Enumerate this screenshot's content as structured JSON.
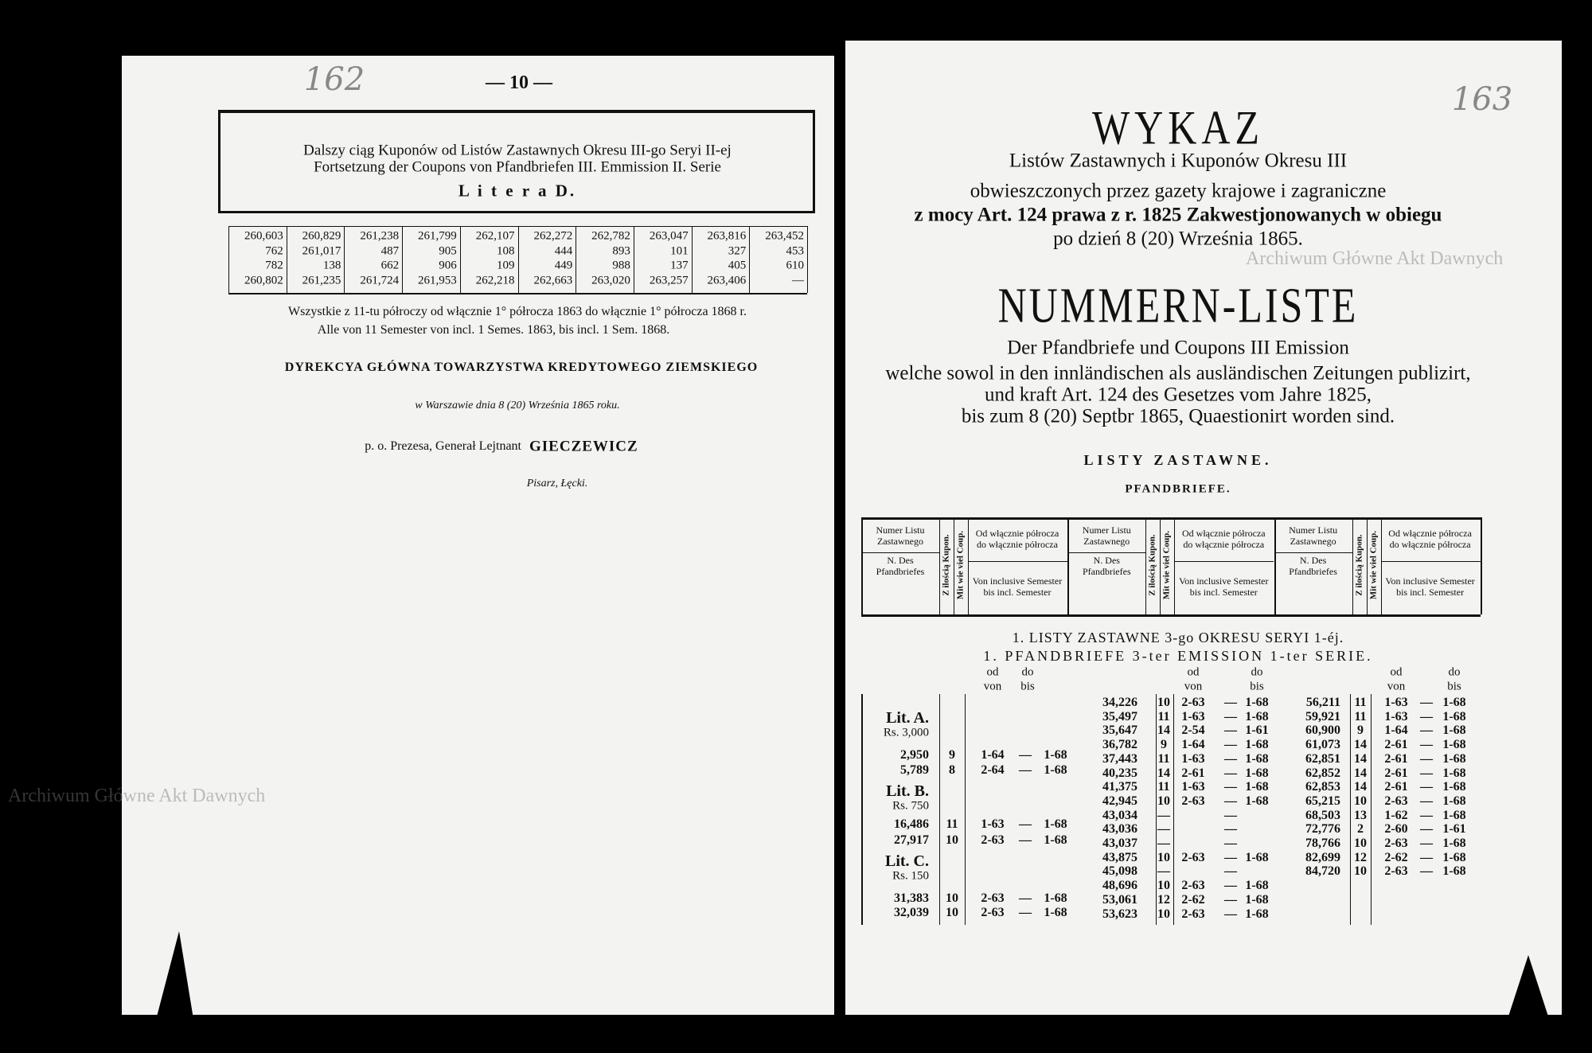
{
  "watermark": [
    "Archiwum Główne Akt Dawnych",
    "Archiwum Główne Akt Dawnych"
  ],
  "left_page": {
    "handwritten_number": "162",
    "page_number": "— 10 —",
    "heading": [
      "Dalszy ciąg Kuponów od Listów Zastawnych Okresu III-go Seryi II-ej",
      "Fortsetzung der Coupons von Pfandbriefen III. Emmission II. Serie",
      "L i t e r a  D."
    ],
    "table": {
      "rows": [
        [
          "260,603",
          "260,829",
          "261,238",
          "261,799",
          "262,107",
          "262,272",
          "262,782",
          "263,047",
          "263,816",
          "263,452"
        ],
        [
          "762",
          "261,017",
          "487",
          "905",
          "108",
          "444",
          "893",
          "101",
          "327",
          "453"
        ],
        [
          "782",
          "138",
          "662",
          "906",
          "109",
          "449",
          "988",
          "137",
          "405",
          "610"
        ],
        [
          "260,802",
          "261,235",
          "261,724",
          "261,953",
          "262,218",
          "262,663",
          "263,020",
          "263,257",
          "263,406",
          "—"
        ]
      ]
    },
    "notes": [
      "Wszystkie z 11-tu półroczy od włącznie 1° półrocza 1863 do włącznie 1° półrocza 1868 r.",
      "Alle von 11 Semester von incl. 1 Semes. 1863, bis incl. 1 Sem. 1868."
    ],
    "institution": "DYREKCYA GŁÓWNA TOWARZYSTWA KREDYTOWEGO ZIEMSKIEGO",
    "place_date": "w Warszawie dnia 8 (20) Września 1865 roku.",
    "signatory_role": "p. o. Prezesa, Generał Lejtnant",
    "signatory_name": "GIECZEWICZ",
    "clerk": "Pisarz, Łęcki."
  },
  "right_page": {
    "handwritten_number": "163",
    "title": "WYKAZ",
    "subtitle_lines": [
      "Listów Zastawnych i Kuponów Okresu III",
      "obwieszczonych przez gazety krajowe i zagraniczne",
      "z mocy Art. 124 prawa z r. 1825 Zakwestjonowanych w obiegu",
      "po dzień 8 (20) Września 1865."
    ],
    "title_de": "NUMMERN-LISTE",
    "subtitle_de_lines": [
      "Der Pfandbriefe und Coupons III Emission",
      "welche sowol in den innländischen als ausländischen Zeitungen publizirt,",
      "und kraft Art. 124 des Gesetzes vom Jahre 1825,",
      "bis zum 8 (20) Septbr 1865, Quaestionirt worden sind."
    ],
    "section_pl": "LISTY ZASTAWNE.",
    "section_de": "PFANDBRIEFE.",
    "column_headers": {
      "number_pl": "Numer Listu Zastawnego",
      "number_de": "N. Des Pfandbriefes",
      "count_pl": "Z ilością Kupon.",
      "count_de": "Mit wie viel Coup.",
      "range_pl": "Od włącznie półrocza do włącznie półrocza",
      "range_de": "Von inclusive Semester bis incl. Semester"
    },
    "series_pl": "1.  LISTY ZASTAWNE 3-go OKRESU SERYI 1-éj.",
    "series_de": "1.  PFANDBRIEFE 3-ter EMISSION 1-ter SERIE.",
    "sub_labels": {
      "od": "od",
      "von": "von",
      "do": "do",
      "bis": "bis"
    },
    "column1": [
      {
        "lit": "Lit. A.",
        "rs": "Rs. 3,000"
      },
      {
        "n": "2,950",
        "c": "9",
        "f": "1-64",
        "d": "—",
        "t": "1-68"
      },
      {
        "n": "5,789",
        "c": "8",
        "f": "2-64",
        "d": "—",
        "t": "1-68"
      },
      {
        "lit": "Lit. B.",
        "rs": "Rs. 750"
      },
      {
        "n": "16,486",
        "c": "11",
        "f": "1-63",
        "d": "—",
        "t": "1-68"
      },
      {
        "n": "27,917",
        "c": "10",
        "f": "2-63",
        "d": "—",
        "t": "1-68"
      },
      {
        "lit": "Lit. C.",
        "rs": "Rs. 150"
      },
      {
        "n": "31,383",
        "c": "10",
        "f": "2-63",
        "d": "—",
        "t": "1-68"
      },
      {
        "n": "32,039",
        "c": "10",
        "f": "2-63",
        "d": "—",
        "t": "1-68"
      }
    ],
    "column2": [
      {
        "n": "34,226",
        "c": "10",
        "f": "2-63",
        "d": "—",
        "t": "1-68"
      },
      {
        "n": "35,497",
        "c": "11",
        "f": "1-63",
        "d": "—",
        "t": "1-68"
      },
      {
        "n": "35,647",
        "c": "14",
        "f": "2-54",
        "d": "—",
        "t": "1-61"
      },
      {
        "n": "36,782",
        "c": "9",
        "f": "1-64",
        "d": "—",
        "t": "1-68"
      },
      {
        "n": "37,443",
        "c": "11",
        "f": "1-63",
        "d": "—",
        "t": "1-68"
      },
      {
        "n": "40,235",
        "c": "14",
        "f": "2-61",
        "d": "—",
        "t": "1-68"
      },
      {
        "n": "41,375",
        "c": "11",
        "f": "1-63",
        "d": "—",
        "t": "1-68"
      },
      {
        "n": "42,945",
        "c": "10",
        "f": "2-63",
        "d": "—",
        "t": "1-68"
      },
      {
        "n": "43,034",
        "c": "—",
        "d": "—"
      },
      {
        "n": "43,036",
        "c": "—",
        "d": "—"
      },
      {
        "n": "43,037",
        "c": "—",
        "d": "—"
      },
      {
        "n": "43,875",
        "c": "10",
        "f": "2-63",
        "d": "—",
        "t": "1-68"
      },
      {
        "n": "45,098",
        "c": "—",
        "d": "—"
      },
      {
        "n": "48,696",
        "c": "10",
        "f": "2-63",
        "d": "—",
        "t": "1-68"
      },
      {
        "n": "53,061",
        "c": "12",
        "f": "2-62",
        "d": "—",
        "t": "1-68"
      },
      {
        "n": "53,623",
        "c": "10",
        "f": "2-63",
        "d": "—",
        "t": "1-68"
      }
    ],
    "column3": [
      {
        "n": "56,211",
        "c": "11",
        "f": "1-63",
        "d": "—",
        "t": "1-68"
      },
      {
        "n": "59,921",
        "c": "11",
        "f": "1-63",
        "d": "—",
        "t": "1-68"
      },
      {
        "n": "60,900",
        "c": "9",
        "f": "1-64",
        "d": "—",
        "t": "1-68"
      },
      {
        "n": "61,073",
        "c": "14",
        "f": "2-61",
        "d": "—",
        "t": "1-68"
      },
      {
        "n": "62,851",
        "c": "14",
        "f": "2-61",
        "d": "—",
        "t": "1-68"
      },
      {
        "n": "62,852",
        "c": "14",
        "f": "2-61",
        "d": "—",
        "t": "1-68"
      },
      {
        "n": "62,853",
        "c": "14",
        "f": "2-61",
        "d": "—",
        "t": "1-68"
      },
      {
        "n": "65,215",
        "c": "10",
        "f": "2-63",
        "d": "—",
        "t": "1-68"
      },
      {
        "n": "68,503",
        "c": "13",
        "f": "1-62",
        "d": "—",
        "t": "1-68"
      },
      {
        "n": "72,776",
        "c": "2",
        "f": "2-60",
        "d": "—",
        "t": "1-61"
      },
      {
        "n": "78,766",
        "c": "10",
        "f": "2-63",
        "d": "—",
        "t": "1-68"
      },
      {
        "n": "82,699",
        "c": "12",
        "f": "2-62",
        "d": "—",
        "t": "1-68"
      },
      {
        "n": "84,720",
        "c": "10",
        "f": "2-63",
        "d": "—",
        "t": "1-68"
      }
    ]
  }
}
